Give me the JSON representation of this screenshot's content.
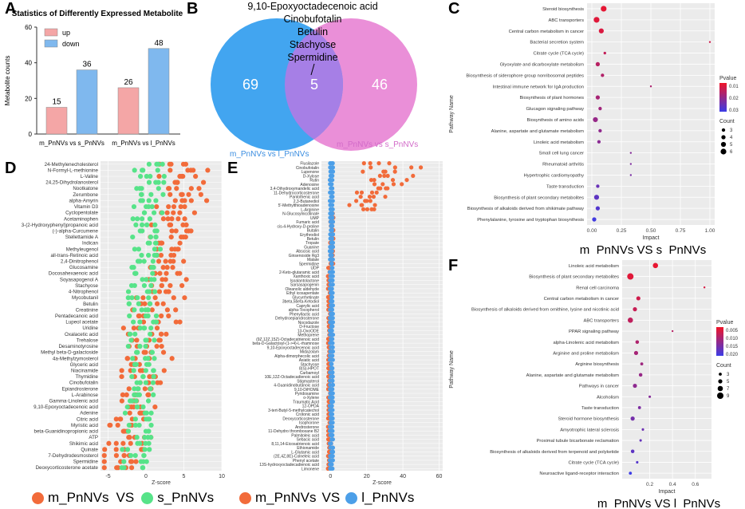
{
  "colors": {
    "up_bar": "#f4a6a6",
    "down_bar": "#7fb8ee",
    "venn_left": "#42a5f0",
    "venn_right": "#ea8fd8",
    "venn_overlap": "#a67fe6",
    "mPn_dot": "#f26b3a",
    "sPn_dot": "#57e389",
    "lPn_dot": "#4c9fe8"
  },
  "panels": {
    "a": {
      "letter": "A"
    },
    "b": {
      "letter": "B"
    },
    "c": {
      "letter": "C"
    },
    "d": {
      "letter": "D"
    },
    "e": {
      "letter": "E"
    },
    "f": {
      "letter": "F"
    }
  },
  "chart_data": [
    {
      "id": "A",
      "type": "bar",
      "title": "Statistics of Differently Expressed Metabolite",
      "ylabel": "Metabolite counts",
      "xlabel": "",
      "ylim": [
        0,
        60
      ],
      "yticks": [
        0,
        20,
        40,
        60
      ],
      "categories": [
        "m_PnNVs vs s_PnNVs",
        "m_PnNVs vs l_PnNVs"
      ],
      "series": [
        {
          "name": "up",
          "values": [
            15,
            26
          ]
        },
        {
          "name": "down",
          "values": [
            36,
            48
          ]
        }
      ]
    },
    {
      "id": "B",
      "type": "venn",
      "sets": [
        {
          "name": "m_PnNVs vs l_PnNVs",
          "only": 69
        },
        {
          "name": "m_PnNVs vs s_PnNVs",
          "only": 46
        }
      ],
      "overlap": 5,
      "overlap_items": [
        "9,10-Epoxyoctadecenoic acid",
        "Cinobufotalin",
        "Betulin",
        "Stachyose",
        "Spermidine"
      ]
    },
    {
      "id": "C",
      "type": "scatter",
      "subtitle": "m_PnNVs  VS  s_PnNVs",
      "xlabel": "Impact",
      "ylabel": "Pathway Name",
      "xlim": [
        0,
        1.0
      ],
      "xticks": [
        "0.00",
        "0.25",
        "0.50",
        "0.75",
        "1.00"
      ],
      "legend_pvalue_title": "Pvalue",
      "legend_pvalue_ticks": [
        "0.01",
        "0.02",
        "0.03"
      ],
      "legend_count_title": "Count",
      "legend_count_values": [
        3,
        4,
        5,
        6
      ],
      "pathways": [
        {
          "name": "Steroid biosynthesis",
          "impact": 0.1,
          "count": 6,
          "p": 0.002
        },
        {
          "name": "ABC transporters",
          "impact": 0.04,
          "count": 6,
          "p": 0.003
        },
        {
          "name": "Central carbon metabolism in cancer",
          "impact": 0.08,
          "count": 5,
          "p": 0.004
        },
        {
          "name": "Bacterial secretion system",
          "impact": 1.0,
          "count": 1,
          "p": 0.006
        },
        {
          "name": "Citrate cycle (TCA cycle)",
          "impact": 0.11,
          "count": 2,
          "p": 0.008
        },
        {
          "name": "Glyoxylate and dicarboxylate metabolism",
          "impact": 0.05,
          "count": 4,
          "p": 0.01
        },
        {
          "name": "Biosynthesis of siderophore group nonribosomal peptides",
          "impact": 0.09,
          "count": 3,
          "p": 0.011
        },
        {
          "name": "Intestinal immune network for IgA production",
          "impact": 0.5,
          "count": 1,
          "p": 0.012
        },
        {
          "name": "Biosynthesis of plant hormones",
          "impact": 0.05,
          "count": 4,
          "p": 0.013
        },
        {
          "name": "Glucagon signaling pathway",
          "impact": 0.07,
          "count": 3,
          "p": 0.014
        },
        {
          "name": "Biosynthesis of amino acids",
          "impact": 0.03,
          "count": 5,
          "p": 0.016
        },
        {
          "name": "Alanine, aspartate and glutamate metabolism",
          "impact": 0.07,
          "count": 3,
          "p": 0.017
        },
        {
          "name": "Linoleic acid metabolism",
          "impact": 0.06,
          "count": 3,
          "p": 0.018
        },
        {
          "name": "Small cell lung cancer",
          "impact": 0.33,
          "count": 1,
          "p": 0.019
        },
        {
          "name": "Rheumatoid arthritis",
          "impact": 0.33,
          "count": 1,
          "p": 0.02
        },
        {
          "name": "Hypertrophic cardiomyopathy",
          "impact": 0.33,
          "count": 1,
          "p": 0.021
        },
        {
          "name": "Taste transduction",
          "impact": 0.05,
          "count": 3,
          "p": 0.024
        },
        {
          "name": "Biosynthesis of plant secondary metabolites",
          "impact": 0.04,
          "count": 5,
          "p": 0.026
        },
        {
          "name": "Biosynthesis of alkaloids derived from shikimate pathway",
          "impact": 0.05,
          "count": 4,
          "p": 0.028
        },
        {
          "name": "Phenylalanine, tyrosine and tryptophan biosynthesis",
          "impact": 0.02,
          "count": 4,
          "p": 0.031
        }
      ]
    },
    {
      "id": "D",
      "type": "scatter",
      "xlabel": "Z-score",
      "xlim": [
        -6,
        10
      ],
      "xticks": [
        "-5",
        "0",
        "5",
        "10"
      ],
      "legend": [
        "m_PnNVs",
        "s_PnNVs"
      ],
      "legend_sep": "VS",
      "metabolites": [
        "24-Methylenecholesterol",
        "N-Formyl-L-methionine",
        "L-Valine",
        "24,25-Dihydrolanosterol",
        "Nootkatone",
        "Zerumbone",
        "alpha-Amyrin",
        "Vitamin D3",
        "Cyclopentolate",
        "Acetaminophen",
        "3-(2-Hydroxyphenyl)propanoic acid",
        "(-)-alpha-Curcumene",
        "Stellettamide A",
        "Indican",
        "Methyleugenol",
        "all-trans-Retinoic acid",
        "2,4-Dinitrophenol",
        "Glucosamine",
        "Docosahexaenoic acid",
        "Soyasapogenol A",
        "Stachyose",
        "4-Nitrophenol",
        "Mycobutanil",
        "Betulin",
        "Creatinine",
        "Pentadecanoic acid",
        "Lupeol acetate",
        "Uridine",
        "Oxalacetic acid",
        "Trehalose",
        "Desaminotyrosine",
        "Methyl beta-D-galactoside",
        "4a-Methylzymosterol",
        "Glyceric acid",
        "Niacinamide",
        "Thymidine",
        "Cinobufotalin",
        "Epiandrosterone",
        "L-Arabinose",
        "Gamma-Linolenic acid",
        "9,10-Epoxyoctadecenoic acid",
        "Adenine",
        "Citric acid",
        "Myristic acid",
        "beta-Guanidinopropionic acid",
        "ATP",
        "Shikimic acid",
        "Quinate",
        "7-Dehydrodesmosterol",
        "Spermidine",
        "Deoxycorticosterone acetate"
      ]
    },
    {
      "id": "E",
      "type": "scatter",
      "xlabel": "Z-score",
      "xlim": [
        -5,
        62
      ],
      "xticks": [
        "0",
        "20",
        "40",
        "60"
      ],
      "legend": [
        "m_PnNVs",
        "l_PnNVs"
      ],
      "legend_sep": "VS",
      "metabolites": [
        "Flusilazole",
        "Cinobufotalin",
        "Lupenone",
        "D-Xylose",
        "Rutin",
        "Adenosine",
        "3,4-Dihydroxymandelic acid",
        "11-Dehydrocorticosterone",
        "Pantothenic acid",
        "2,3-Butanediol",
        "5'-Methylthioadenosine",
        "L-Arginine",
        "N-Glucosylnicotinate",
        "UMP",
        "Fumaric acid",
        "cis-4-Hydroxy-D-proline",
        "Butalin",
        "Erythrodiol",
        "Betulin",
        "Tropate",
        "Guanine",
        "Abscisic acid",
        "Ginsenoside Rg3",
        "Malate",
        "Spermidine",
        "UDP",
        "2-Keto-glutaramic acid",
        "Xanthoxic acid",
        "Isoalantolactone",
        "Sarsasapogenin",
        "Oleanolic aldehyde",
        "Ethyl icosapentate",
        "Glycyrrhetinate",
        "3beta,5beta-Ketodiol",
        "Caprylic acid",
        "alpha-Tocopherol",
        "Phenyllactic acid",
        "Dehydroepiandrosterone",
        "Nocodazole",
        "D-Fructose",
        "13-OxoODE",
        "Methoprene",
        "(9Z,12Z,15Z)-Octadecatrienoic acid",
        "beta-D-Galactosyl-(1->4)-L-rhamnose",
        "9,10-Epoxyoctadecenoic acid",
        "Midazolam",
        "Alpha-dimorphecolic acid",
        "Asiatic acid",
        "Stachyose",
        "8(S)-HPOT",
        "Carbamoyl",
        "10E,12Z-Octadecadienoic acid",
        "Stigmasterol",
        "4-Guanidinobutanoic acid",
        "9,10-DiHOME",
        "Pyridoxamine",
        "o-Xylene",
        "Traumatic Acid",
        "12-OPDA",
        "3-tert-Butyl-5-methylcatechol",
        "Crotonic acid",
        "Deoxycorticosterone",
        "Isophorone",
        "Androsterone",
        "11-Dehydro thromboxane B2",
        "Palmitoleic acid",
        "Sebacic acid",
        "8,11,14-Eicosatrienoic acid",
        "Ethionamide",
        "L-Glutamic acid",
        "(2E,4Z,8E)-Colneleic acid",
        "Phenyl acetate",
        "13S-hydroxyoctadecadienoic acid",
        "Limonene"
      ]
    },
    {
      "id": "F",
      "type": "scatter",
      "subtitle": "m_PnNVs  VS  l_PnNVs",
      "xlabel": "Impact",
      "ylabel": "Pathway Name",
      "xlim": [
        0,
        0.7
      ],
      "xticks": [
        "0.2",
        "0.4",
        "0.6"
      ],
      "legend_pvalue_title": "Pvalue",
      "legend_pvalue_ticks": [
        "0.005",
        "0.010",
        "0.015",
        "0.020"
      ],
      "legend_count_title": "Count",
      "legend_count_values": [
        3,
        5,
        7,
        9
      ],
      "pathways": [
        {
          "name": "Linoleic acid metabolism",
          "impact": 0.25,
          "count": 7,
          "p": 0.001
        },
        {
          "name": "Biosynthesis of plant secondary metabolites",
          "impact": 0.03,
          "count": 9,
          "p": 0.002
        },
        {
          "name": "Renal cell carcinoma",
          "impact": 0.68,
          "count": 1,
          "p": 0.003
        },
        {
          "name": "Central carbon metabolism in cancer",
          "impact": 0.1,
          "count": 5,
          "p": 0.004
        },
        {
          "name": "Biosynthesis of alkaloids derived from ornithine, lysine and nicotinic acid",
          "impact": 0.07,
          "count": 5,
          "p": 0.005
        },
        {
          "name": "ABC transporters",
          "impact": 0.03,
          "count": 7,
          "p": 0.006
        },
        {
          "name": "PPAR signaling pathway",
          "impact": 0.4,
          "count": 1,
          "p": 0.007
        },
        {
          "name": "alpha-Linolenic acid metabolism",
          "impact": 0.09,
          "count": 4,
          "p": 0.008
        },
        {
          "name": "Arginine and proline metabolism",
          "impact": 0.08,
          "count": 5,
          "p": 0.009
        },
        {
          "name": "Arginine biosynthesis",
          "impact": 0.13,
          "count": 3,
          "p": 0.01
        },
        {
          "name": "Alanine, aspartate and glutamate metabolism",
          "impact": 0.12,
          "count": 4,
          "p": 0.011
        },
        {
          "name": "Pathways in cancer",
          "impact": 0.07,
          "count": 5,
          "p": 0.012
        },
        {
          "name": "Alcoholism",
          "impact": 0.2,
          "count": 2,
          "p": 0.013
        },
        {
          "name": "Taste transduction",
          "impact": 0.11,
          "count": 3,
          "p": 0.014
        },
        {
          "name": "Steroid hormone biosynthesis",
          "impact": 0.05,
          "count": 5,
          "p": 0.015
        },
        {
          "name": "Amyotrophic lateral sclerosis",
          "impact": 0.14,
          "count": 2,
          "p": 0.016
        },
        {
          "name": "Proximal tubule bicarbonate reclamation",
          "impact": 0.12,
          "count": 2,
          "p": 0.017
        },
        {
          "name": "Biosynthesis of alkaloids derived from terpenoid and polyketide",
          "impact": 0.05,
          "count": 4,
          "p": 0.018
        },
        {
          "name": "Citrate cycle (TCA cycle)",
          "impact": 0.09,
          "count": 2,
          "p": 0.019
        },
        {
          "name": "Neuroactive ligand-receptor interaction",
          "impact": 0.03,
          "count": 3,
          "p": 0.022
        }
      ]
    }
  ]
}
